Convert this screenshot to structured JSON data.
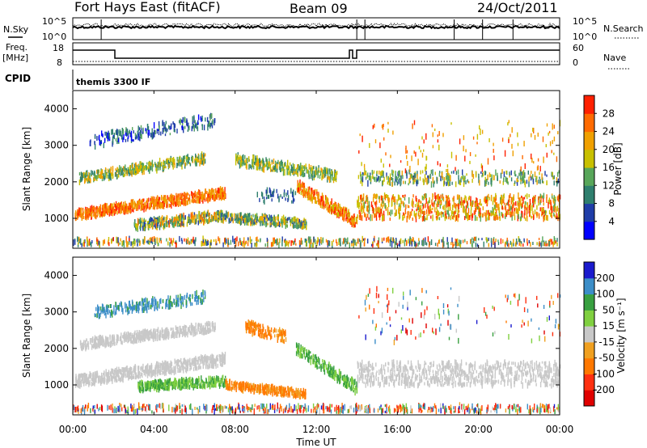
{
  "header": {
    "station": "Fort Hays East (fitACF)",
    "beam": "Beam 09",
    "date": "24/Oct/2011"
  },
  "noise_panel": {
    "left_label": "N.Sky",
    "right_label": "N.Search",
    "left_ticks": [
      "10^5",
      "10^0"
    ],
    "right_ticks": [
      "10^5",
      "10^0"
    ]
  },
  "freq_panel": {
    "left_label_1": "Freq.",
    "left_label_2": "[MHz]",
    "right_label": "Nave",
    "left_ticks": [
      "18",
      "8"
    ],
    "right_ticks": [
      "60",
      "0"
    ]
  },
  "cpid": {
    "label": "CPID",
    "program": "themis 3300 IF"
  },
  "x_axis": {
    "title": "Time UT",
    "ticks": [
      "00:00",
      "04:00",
      "08:00",
      "12:00",
      "16:00",
      "20:00",
      "00:00"
    ],
    "tick_hours": [
      0,
      4,
      8,
      12,
      16,
      20,
      24
    ],
    "range_hours": [
      0,
      24
    ]
  },
  "chart_data": [
    {
      "type": "heatmap",
      "panel": "power",
      "ylabel": "Slant Range [km]",
      "ylim": [
        180,
        4500
      ],
      "yticks": [
        1000,
        2000,
        3000,
        4000
      ],
      "colorbar_label": "Power [dB]",
      "colorbar_ticks": [
        4,
        8,
        12,
        16,
        20,
        24,
        28
      ],
      "colorbar_range": [
        0,
        32
      ],
      "colors": [
        "#0000ff",
        "#1f3da8",
        "#2f7f6e",
        "#58a65a",
        "#c8c000",
        "#f0a000",
        "#ff6a00",
        "#ff2000"
      ],
      "scatter_bands": [
        {
          "t": [
            0.1,
            7.5
          ],
          "r0": [
            1100,
            1700
          ],
          "slope": [
            -30,
            600
          ],
          "width": 260,
          "val": [
            20,
            30
          ],
          "dens": 1
        },
        {
          "t": [
            3.0,
            7.0
          ],
          "r0": [
            800,
            1050
          ],
          "slope": [
            0,
            0
          ],
          "width": 260,
          "val": [
            6,
            26
          ],
          "dens": 0.8
        },
        {
          "t": [
            7.0,
            11.5
          ],
          "r0": [
            1050,
            850
          ],
          "slope": [
            0,
            0
          ],
          "width": 230,
          "val": [
            6,
            24
          ],
          "dens": 0.8
        },
        {
          "t": [
            9.0,
            11.0
          ],
          "r0": [
            1600,
            1600
          ],
          "slope": [
            0,
            0
          ],
          "width": 350,
          "val": [
            4,
            10
          ],
          "dens": 0.25
        },
        {
          "t": [
            11.0,
            14.0
          ],
          "r0": [
            1900,
            900
          ],
          "slope": [
            0,
            0
          ],
          "width": 320,
          "val": [
            18,
            31
          ],
          "dens": 1
        },
        {
          "t": [
            8.0,
            13.0
          ],
          "r0": [
            2600,
            2150
          ],
          "slope": [
            0,
            0
          ],
          "width": 300,
          "val": [
            8,
            22
          ],
          "dens": 0.7
        },
        {
          "t": [
            0.3,
            6.5
          ],
          "r0": [
            2100,
            2650
          ],
          "slope": [
            0,
            0
          ],
          "width": 250,
          "val": [
            8,
            24
          ],
          "dens": 0.7
        },
        {
          "t": [
            0.8,
            7.0
          ],
          "r0": [
            3100,
            3700
          ],
          "slope": [
            0,
            0
          ],
          "width": 350,
          "val": [
            2,
            14
          ],
          "dens": 0.4
        },
        {
          "t": [
            14.0,
            24.0
          ],
          "r0": [
            1300,
            1300
          ],
          "slope": [
            0,
            0
          ],
          "width": 650,
          "val": [
            14,
            31
          ],
          "dens": 0.9
        },
        {
          "t": [
            14.0,
            24.0
          ],
          "r0": [
            2100,
            2100
          ],
          "slope": [
            0,
            0
          ],
          "width": 350,
          "val": [
            6,
            22
          ],
          "dens": 0.35
        },
        {
          "t": [
            14.0,
            24.0
          ],
          "r0": [
            2900,
            2900
          ],
          "slope": [
            0,
            0
          ],
          "width": 1500,
          "val": [
            16,
            31
          ],
          "dens": 0.15
        },
        {
          "t": [
            0.0,
            24.0
          ],
          "r0": [
            350,
            350
          ],
          "slope": [
            0,
            0
          ],
          "width": 180,
          "val": [
            4,
            30
          ],
          "dens": 0.25
        }
      ]
    },
    {
      "type": "heatmap",
      "panel": "velocity",
      "ylabel": "Slant Range [km]",
      "ylim": [
        180,
        4500
      ],
      "yticks": [
        1000,
        2000,
        3000,
        4000
      ],
      "colorbar_label": "Velocity [m s⁻¹]",
      "colorbar_ticks": [
        200,
        100,
        50,
        15,
        -15,
        -50,
        -100,
        -200
      ],
      "colors": [
        "#1a1acd",
        "#3c8ec8",
        "#38a040",
        "#80d040",
        "#c8c8c8",
        "#f0a020",
        "#ff7800",
        "#ff3010",
        "#e00000"
      ],
      "scatter_bands": [
        {
          "t": [
            0.1,
            7.5
          ],
          "r0": [
            1100,
            1700
          ],
          "slope": [
            0,
            0
          ],
          "width": 300,
          "val": [
            -15,
            15
          ],
          "dens": 0.9
        },
        {
          "t": [
            3.2,
            7.5
          ],
          "r0": [
            950,
            1100
          ],
          "slope": [
            0,
            0
          ],
          "width": 240,
          "val": [
            40,
            60
          ],
          "dens": 1
        },
        {
          "t": [
            7.5,
            11.5
          ],
          "r0": [
            1000,
            750
          ],
          "slope": [
            0,
            0
          ],
          "width": 200,
          "val": [
            -80,
            -40
          ],
          "dens": 0.9
        },
        {
          "t": [
            11.0,
            14.0
          ],
          "r0": [
            2000,
            900
          ],
          "slope": [
            0,
            0
          ],
          "width": 300,
          "val": [
            40,
            60
          ],
          "dens": 0.8
        },
        {
          "t": [
            8.5,
            10.5
          ],
          "r0": [
            2600,
            2300
          ],
          "slope": [
            0,
            0
          ],
          "width": 300,
          "val": [
            -80,
            -40
          ],
          "dens": 0.7
        },
        {
          "t": [
            1.0,
            6.5
          ],
          "r0": [
            3000,
            3400
          ],
          "slope": [
            0,
            0
          ],
          "width": 300,
          "val": [
            80,
            160
          ],
          "dens": 0.5
        },
        {
          "t": [
            0.3,
            7.0
          ],
          "r0": [
            2100,
            2600
          ],
          "slope": [
            0,
            0
          ],
          "width": 250,
          "val": [
            -15,
            15
          ],
          "dens": 0.8
        },
        {
          "t": [
            14.0,
            24.0
          ],
          "r0": [
            1300,
            1300
          ],
          "slope": [
            0,
            0
          ],
          "width": 650,
          "val": [
            -15,
            15
          ],
          "dens": 0.85
        },
        {
          "t": [
            14.0,
            24.0
          ],
          "r0": [
            2900,
            2900
          ],
          "slope": [
            0,
            0
          ],
          "width": 1500,
          "val": [
            -250,
            250
          ],
          "dens": 0.15
        },
        {
          "t": [
            0.0,
            24.0
          ],
          "r0": [
            350,
            350
          ],
          "slope": [
            0,
            0
          ],
          "width": 180,
          "val": [
            -250,
            250
          ],
          "dens": 0.25
        }
      ]
    }
  ]
}
